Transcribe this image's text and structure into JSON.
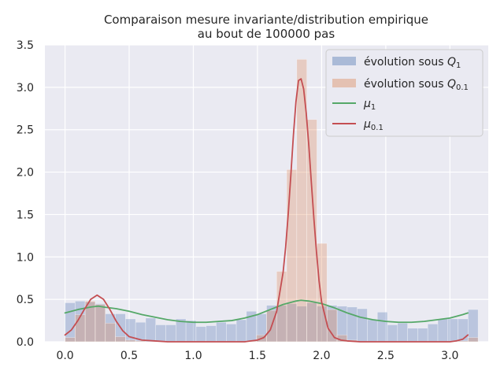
{
  "chart_data": {
    "type": "bar",
    "title": "Comparaison mesure invariante/distribution empirique",
    "subtitle": "au bout de 100000 pas",
    "xlabel": "",
    "ylabel": "",
    "xlim": [
      -0.157,
      3.299
    ],
    "ylim": [
      0,
      3.5
    ],
    "grid": true,
    "legend_position": "top-right",
    "x_ticks": [
      "0.0",
      "0.5",
      "1.0",
      "1.5",
      "2.0",
      "2.5",
      "3.0"
    ],
    "y_ticks": [
      "0.0",
      "0.5",
      "1.0",
      "1.5",
      "2.0",
      "2.5",
      "3.0",
      "3.5"
    ],
    "bin_edges_start": 0.0,
    "bin_width": 0.07854,
    "series": [
      {
        "name": "évolution sous Q1",
        "legend_label": "évolution sous ",
        "legend_math": "Q",
        "legend_sub": "1",
        "kind": "histogram",
        "color": "#4c72b0",
        "opacity": 0.3,
        "values": [
          0.46,
          0.48,
          0.47,
          0.45,
          0.33,
          0.33,
          0.27,
          0.23,
          0.28,
          0.2,
          0.2,
          0.27,
          0.25,
          0.18,
          0.19,
          0.23,
          0.21,
          0.26,
          0.36,
          0.33,
          0.43,
          0.43,
          0.45,
          0.42,
          0.46,
          0.42,
          0.43,
          0.42,
          0.41,
          0.39,
          0.26,
          0.35,
          0.2,
          0.22,
          0.16,
          0.16,
          0.21,
          0.27,
          0.27,
          0.27,
          0.38
        ]
      },
      {
        "name": "évolution sous Q0.1",
        "legend_label": "évolution sous ",
        "legend_math": "Q",
        "legend_sub": "0.1",
        "kind": "histogram",
        "color": "#dd8452",
        "opacity": 0.3,
        "values": [
          0.05,
          0.32,
          0.48,
          0.44,
          0.22,
          0.06,
          0.02,
          0.01,
          0.0,
          0.0,
          0.0,
          0.0,
          0.0,
          0.0,
          0.0,
          0.0,
          0.0,
          0.0,
          0.01,
          0.08,
          0.37,
          0.83,
          2.03,
          3.33,
          2.62,
          1.16,
          0.38,
          0.08,
          0.02,
          0.0,
          0.0,
          0.0,
          0.0,
          0.0,
          0.0,
          0.0,
          0.0,
          0.0,
          0.0,
          0.01,
          0.05
        ]
      },
      {
        "name": "μ1",
        "legend_math": "μ",
        "legend_sub": "1",
        "kind": "line",
        "color": "#55a868",
        "x": [
          0.0,
          0.1,
          0.2,
          0.26,
          0.3,
          0.4,
          0.5,
          0.6,
          0.7,
          0.8,
          0.9,
          1.0,
          1.05,
          1.1,
          1.2,
          1.3,
          1.4,
          1.5,
          1.6,
          1.7,
          1.8,
          1.84,
          1.9,
          2.0,
          2.1,
          2.2,
          2.3,
          2.4,
          2.5,
          2.6,
          2.65,
          2.7,
          2.8,
          2.9,
          3.0,
          3.1,
          3.14
        ],
        "y": [
          0.34,
          0.38,
          0.41,
          0.42,
          0.41,
          0.39,
          0.36,
          0.32,
          0.29,
          0.26,
          0.24,
          0.23,
          0.23,
          0.23,
          0.24,
          0.25,
          0.28,
          0.32,
          0.38,
          0.44,
          0.48,
          0.49,
          0.48,
          0.45,
          0.4,
          0.34,
          0.29,
          0.26,
          0.24,
          0.23,
          0.23,
          0.23,
          0.24,
          0.26,
          0.28,
          0.32,
          0.34
        ]
      },
      {
        "name": "μ0.1",
        "legend_math": "μ",
        "legend_sub": "0.1",
        "kind": "line",
        "color": "#c44e52",
        "x": [
          0.0,
          0.05,
          0.1,
          0.15,
          0.2,
          0.25,
          0.3,
          0.35,
          0.4,
          0.45,
          0.5,
          0.6,
          0.7,
          0.8,
          0.9,
          1.0,
          1.1,
          1.2,
          1.3,
          1.4,
          1.45,
          1.5,
          1.55,
          1.6,
          1.65,
          1.7,
          1.72,
          1.74,
          1.76,
          1.78,
          1.8,
          1.82,
          1.84,
          1.86,
          1.88,
          1.9,
          1.92,
          1.94,
          1.96,
          1.98,
          2.0,
          2.05,
          2.1,
          2.15,
          2.2,
          2.3,
          2.4,
          2.6,
          2.8,
          3.0,
          3.05,
          3.1,
          3.14
        ],
        "y": [
          0.08,
          0.14,
          0.25,
          0.38,
          0.5,
          0.55,
          0.5,
          0.38,
          0.24,
          0.13,
          0.06,
          0.02,
          0.01,
          0.0,
          0.0,
          0.0,
          0.0,
          0.0,
          0.0,
          0.0,
          0.01,
          0.02,
          0.05,
          0.14,
          0.36,
          0.82,
          1.12,
          1.51,
          1.96,
          2.43,
          2.83,
          3.08,
          3.1,
          2.98,
          2.7,
          2.32,
          1.88,
          1.45,
          1.06,
          0.72,
          0.47,
          0.16,
          0.05,
          0.02,
          0.01,
          0.0,
          0.0,
          0.0,
          0.0,
          0.0,
          0.01,
          0.03,
          0.08
        ]
      }
    ]
  }
}
